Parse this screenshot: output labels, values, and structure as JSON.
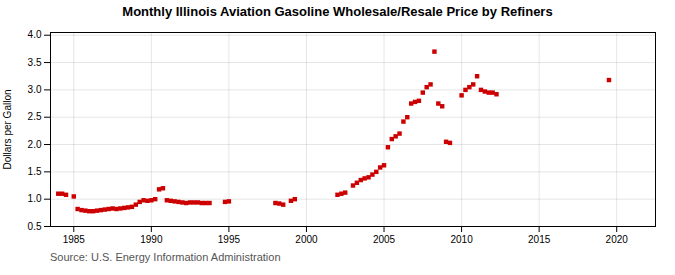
{
  "chart_data": {
    "type": "scatter",
    "title": "Monthly Illinois Aviation Gasoline Wholesale/Resale Price by Refiners",
    "ylabel": "Dollars per Gallon",
    "annotations": [
      "Source: U.S. Energy Information Administration"
    ],
    "color": "#cc0000",
    "marker": "square",
    "grid": true,
    "xlim": [
      1983.5,
      2022.5
    ],
    "xticks": [
      1985,
      1990,
      1995,
      2000,
      2005,
      2010,
      2015,
      2020
    ],
    "ylim": [
      0.5,
      4.05
    ],
    "yticks": [
      0.5,
      {
        "value": 1.0,
        "label": "1.0"
      },
      1.5,
      {
        "value": 2.0,
        "label": "2.0"
      },
      2.5,
      {
        "value": 3.0,
        "label": "3.0"
      },
      3.5,
      {
        "value": 4.0,
        "label": "4.0"
      }
    ],
    "x": [
      1984.0,
      1984.25,
      1984.5,
      1985.0,
      1985.25,
      1985.5,
      1985.75,
      1986.0,
      1986.25,
      1986.5,
      1986.75,
      1987.0,
      1987.25,
      1987.5,
      1987.75,
      1988.0,
      1988.25,
      1988.5,
      1988.75,
      1989.0,
      1989.25,
      1989.5,
      1989.75,
      1990.0,
      1990.25,
      1990.5,
      1990.75,
      1991.0,
      1991.25,
      1991.5,
      1991.75,
      1992.0,
      1992.25,
      1992.5,
      1992.75,
      1993.0,
      1993.25,
      1993.5,
      1993.75,
      1994.75,
      1995.0,
      1998.0,
      1998.25,
      1998.5,
      1999.0,
      1999.25,
      2002.0,
      2002.25,
      2002.5,
      2003.0,
      2003.25,
      2003.5,
      2003.75,
      2004.0,
      2004.25,
      2004.5,
      2004.75,
      2005.0,
      2005.25,
      2005.5,
      2005.75,
      2006.0,
      2006.25,
      2006.5,
      2006.75,
      2007.0,
      2007.25,
      2007.5,
      2007.75,
      2008.0,
      2008.25,
      2008.5,
      2008.75,
      2009.0,
      2009.25,
      2010.0,
      2010.25,
      2010.5,
      2010.75,
      2011.0,
      2011.25,
      2011.5,
      2011.75,
      2012.0,
      2012.25,
      2019.5
    ],
    "values": [
      1.1,
      1.1,
      1.08,
      1.05,
      0.82,
      0.8,
      0.79,
      0.78,
      0.78,
      0.79,
      0.8,
      0.81,
      0.82,
      0.83,
      0.82,
      0.83,
      0.84,
      0.85,
      0.86,
      0.9,
      0.95,
      0.98,
      0.97,
      0.98,
      1.0,
      1.18,
      1.2,
      0.98,
      0.97,
      0.96,
      0.95,
      0.94,
      0.93,
      0.94,
      0.94,
      0.94,
      0.93,
      0.93,
      0.93,
      0.95,
      0.96,
      0.93,
      0.92,
      0.9,
      0.97,
      1.0,
      1.08,
      1.1,
      1.12,
      1.25,
      1.3,
      1.35,
      1.38,
      1.4,
      1.45,
      1.5,
      1.58,
      1.62,
      1.95,
      2.1,
      2.15,
      2.2,
      2.42,
      2.5,
      2.75,
      2.78,
      2.8,
      2.95,
      3.05,
      3.1,
      3.7,
      2.75,
      2.7,
      2.05,
      2.03,
      2.9,
      3.0,
      3.05,
      3.1,
      3.25,
      3.0,
      2.97,
      2.95,
      2.95,
      2.92,
      3.18
    ]
  }
}
